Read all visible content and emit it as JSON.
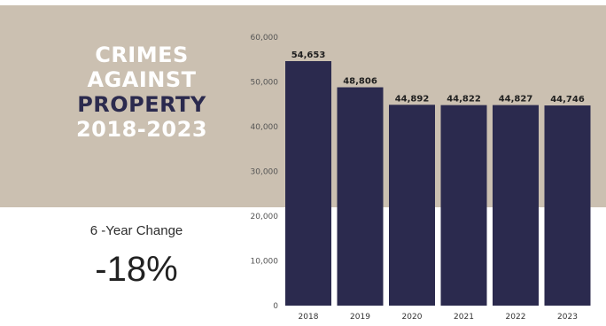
{
  "title": {
    "line1": "CRIMES",
    "line2": "AGAINST",
    "line3": "PROPERTY",
    "line4": "2018-2023"
  },
  "summary": {
    "label": "6 -Year Change",
    "value": "-18%"
  },
  "colors": {
    "band": "#cbc0b1",
    "bar": "#2b2a4e",
    "title_light": "#ffffff",
    "title_dark": "#2b2a4e"
  },
  "chart_data": {
    "type": "bar",
    "categories": [
      "2018",
      "2019",
      "2020",
      "2021",
      "2022",
      "2023"
    ],
    "values": [
      54653,
      48806,
      44892,
      44822,
      44827,
      44746
    ],
    "value_labels": [
      "54,653",
      "48,806",
      "44,892",
      "44,822",
      "44,827",
      "44,746"
    ],
    "ylim": [
      0,
      60000
    ],
    "yticks": [
      0,
      10000,
      20000,
      30000,
      40000,
      50000,
      60000
    ],
    "ytick_labels": [
      "0",
      "10,000",
      "20,000",
      "30,000",
      "40,000",
      "50,000",
      "60,000"
    ],
    "grid": false,
    "legend": "none"
  }
}
